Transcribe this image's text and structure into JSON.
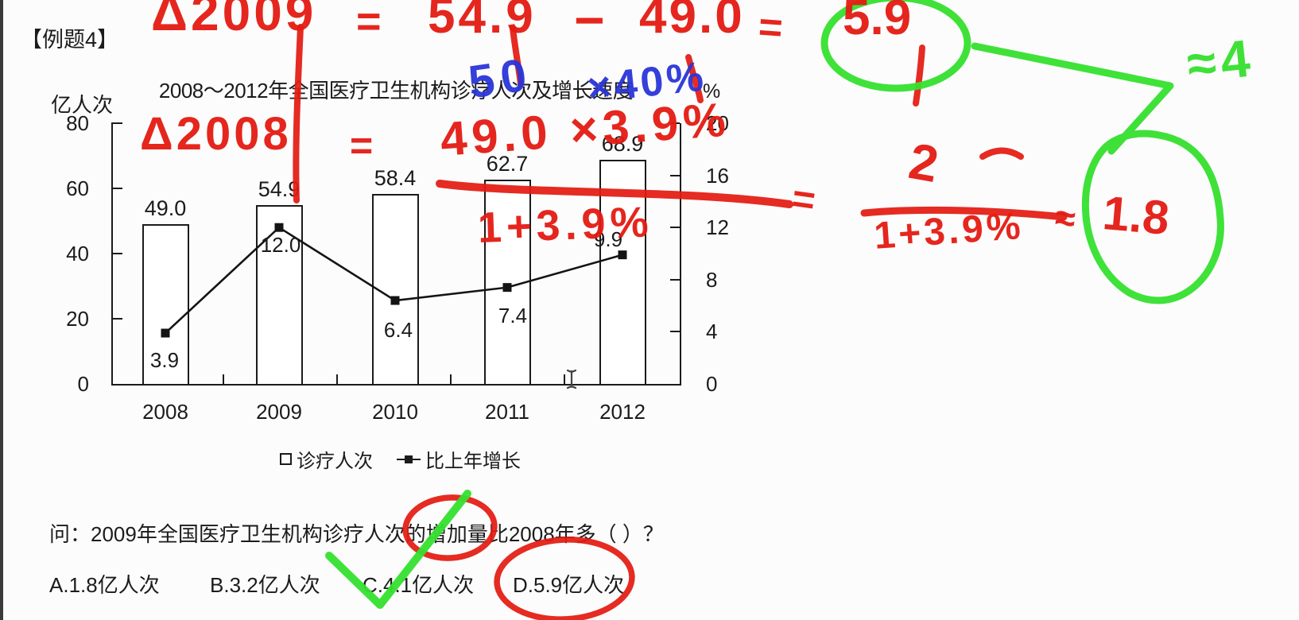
{
  "slide": {
    "tag": "【例题4】"
  },
  "chart": {
    "title": "2008～2012年全国医疗卫生机构诊疗人次及增长速度",
    "left_axis_unit": "亿人次",
    "right_axis_unit": "%",
    "left_ticks": [
      "80",
      "60",
      "40",
      "20",
      "0"
    ],
    "right_ticks": [
      "20",
      "16",
      "12",
      "8",
      "4",
      "0"
    ],
    "legend": {
      "bar": "诊疗人次",
      "line": "比上年增长"
    }
  },
  "chart_data": {
    "type": "combo_bar_line",
    "title": "2008～2012年全国医疗卫生机构诊疗人次及增长速度",
    "categories": [
      "2008",
      "2009",
      "2010",
      "2011",
      "2012"
    ],
    "series": [
      {
        "name": "诊疗人次",
        "type": "bar",
        "axis": "left",
        "unit": "亿人次",
        "values": [
          49.0,
          54.9,
          58.4,
          62.7,
          68.9
        ],
        "labels": [
          "49.0",
          "54.9",
          "58.4",
          "62.7",
          "68.9"
        ]
      },
      {
        "name": "比上年增长",
        "type": "line",
        "axis": "right",
        "unit": "%",
        "values": [
          3.9,
          12.0,
          6.4,
          7.4,
          9.9
        ],
        "labels": [
          "3.9",
          "12.0",
          "6.4",
          "7.4",
          "9.9"
        ]
      }
    ],
    "left_axis": {
      "label": "亿人次",
      "min": 0,
      "max": 80,
      "step": 20
    },
    "right_axis": {
      "label": "%",
      "min": 0,
      "max": 20,
      "step": 4
    },
    "grid": false,
    "legend_position": "bottom"
  },
  "question": {
    "text": "问：2009年全国医疗卫生机构诊疗人次的增加量比2008年多（ ）？",
    "options": [
      "A.1.8亿人次",
      "B.3.2亿人次",
      "C.4.1亿人次",
      "D.5.9亿人次"
    ]
  },
  "annotations": {
    "red_line1": {
      "delta": "Δ2009",
      "eq1": "=",
      "a": "54.9",
      "minus": "−",
      "b": "49.0",
      "eq2": "=",
      "result": "5.9"
    },
    "red_line2": {
      "delta": "Δ2008",
      "eq": "=",
      "numerator": "49.0 ×3.9%",
      "denominator": "1+3.9%"
    },
    "red_line3": {
      "eq": "=",
      "numerator": "2",
      "denominator": "1+3.9%",
      "approx": "≈",
      "result": "1.8"
    },
    "blue_note": {
      "a": "50",
      "b": "×40%"
    },
    "green_note": {
      "approx4": "≈4"
    }
  },
  "icons": {
    "cursor": "text-cursor-i-beam"
  },
  "colors": {
    "marker_red": "#e41b12",
    "marker_green": "#35e02e",
    "marker_blue": "#2b35d8",
    "chart_ink": "#1b1b1b",
    "background": "#fcfcfc"
  }
}
